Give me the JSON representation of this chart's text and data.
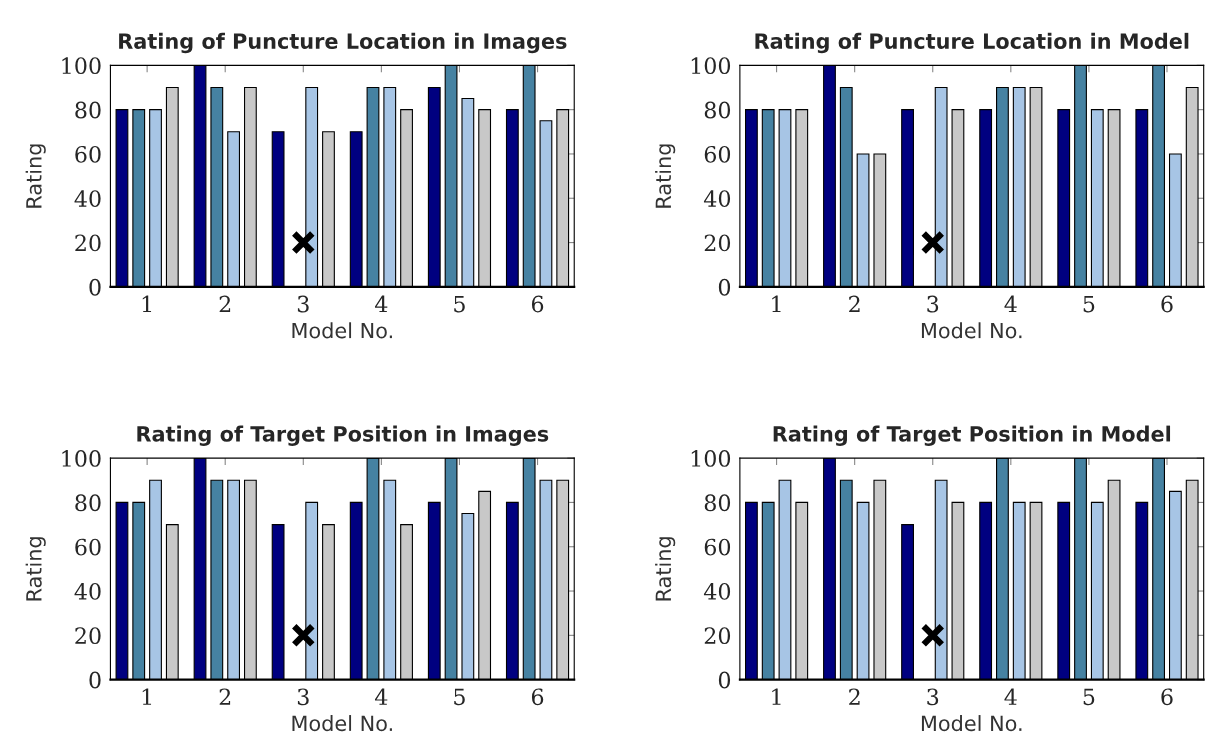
{
  "chart_data": [
    {
      "type": "bar",
      "title": "Rating of Puncture Location in Images",
      "xlabel": "Model No.",
      "ylabel": "Rating",
      "categories": [
        "1",
        "2",
        "3",
        "4",
        "5",
        "6"
      ],
      "ylim": [
        0,
        100
      ],
      "yticks": [
        0,
        20,
        40,
        60,
        80,
        100
      ],
      "grid": false,
      "legend": false,
      "series": [
        {
          "color": "#000080",
          "values": [
            80,
            100,
            70,
            70,
            90,
            80
          ]
        },
        {
          "color": "#4682a2",
          "values": [
            80,
            90,
            null,
            90,
            100,
            100
          ]
        },
        {
          "color": "#a7c5e5",
          "values": [
            80,
            70,
            90,
            90,
            85,
            75
          ]
        },
        {
          "color": "#c8c8c8",
          "values": [
            90,
            90,
            70,
            80,
            80,
            80
          ]
        },
        {
          "type": "scatter",
          "color": "#000000",
          "marker": "cross",
          "x": [
            "3"
          ],
          "values": [
            20
          ]
        }
      ]
    },
    {
      "type": "bar",
      "title": "Rating of Puncture Location in Model",
      "xlabel": "Model No.",
      "ylabel": "Rating",
      "categories": [
        "1",
        "2",
        "3",
        "4",
        "5",
        "6"
      ],
      "ylim": [
        0,
        100
      ],
      "yticks": [
        0,
        20,
        40,
        60,
        80,
        100
      ],
      "grid": false,
      "legend": false,
      "series": [
        {
          "color": "#000080",
          "values": [
            80,
            100,
            80,
            80,
            80,
            80
          ]
        },
        {
          "color": "#4682a2",
          "values": [
            80,
            90,
            null,
            90,
            100,
            100
          ]
        },
        {
          "color": "#a7c5e5",
          "values": [
            80,
            60,
            90,
            90,
            80,
            60
          ]
        },
        {
          "color": "#c8c8c8",
          "values": [
            80,
            60,
            80,
            90,
            80,
            90
          ]
        },
        {
          "type": "scatter",
          "color": "#000000",
          "marker": "cross",
          "x": [
            "3"
          ],
          "values": [
            20
          ]
        }
      ]
    },
    {
      "type": "bar",
      "title": "Rating of Target Position in Images",
      "xlabel": "Model No.",
      "ylabel": "Rating",
      "categories": [
        "1",
        "2",
        "3",
        "4",
        "5",
        "6"
      ],
      "ylim": [
        0,
        100
      ],
      "yticks": [
        0,
        20,
        40,
        60,
        80,
        100
      ],
      "grid": false,
      "legend": false,
      "series": [
        {
          "color": "#000080",
          "values": [
            80,
            100,
            70,
            80,
            80,
            80
          ]
        },
        {
          "color": "#4682a2",
          "values": [
            80,
            90,
            null,
            100,
            100,
            100
          ]
        },
        {
          "color": "#a7c5e5",
          "values": [
            90,
            90,
            80,
            90,
            75,
            90
          ]
        },
        {
          "color": "#c8c8c8",
          "values": [
            70,
            90,
            70,
            70,
            85,
            90
          ]
        },
        {
          "type": "scatter",
          "color": "#000000",
          "marker": "cross",
          "x": [
            "3"
          ],
          "values": [
            20
          ]
        }
      ]
    },
    {
      "type": "bar",
      "title": "Rating of Target Position in Model",
      "xlabel": "Model No.",
      "ylabel": "Rating",
      "categories": [
        "1",
        "2",
        "3",
        "4",
        "5",
        "6"
      ],
      "ylim": [
        0,
        100
      ],
      "yticks": [
        0,
        20,
        40,
        60,
        80,
        100
      ],
      "grid": false,
      "legend": false,
      "series": [
        {
          "color": "#000080",
          "values": [
            80,
            100,
            70,
            80,
            80,
            80
          ]
        },
        {
          "color": "#4682a2",
          "values": [
            80,
            90,
            null,
            100,
            100,
            100
          ]
        },
        {
          "color": "#a7c5e5",
          "values": [
            90,
            80,
            90,
            80,
            80,
            85
          ]
        },
        {
          "color": "#c8c8c8",
          "values": [
            80,
            90,
            80,
            80,
            90,
            90
          ]
        },
        {
          "type": "scatter",
          "color": "#000000",
          "marker": "cross",
          "x": [
            "3"
          ],
          "values": [
            20
          ]
        }
      ]
    }
  ]
}
